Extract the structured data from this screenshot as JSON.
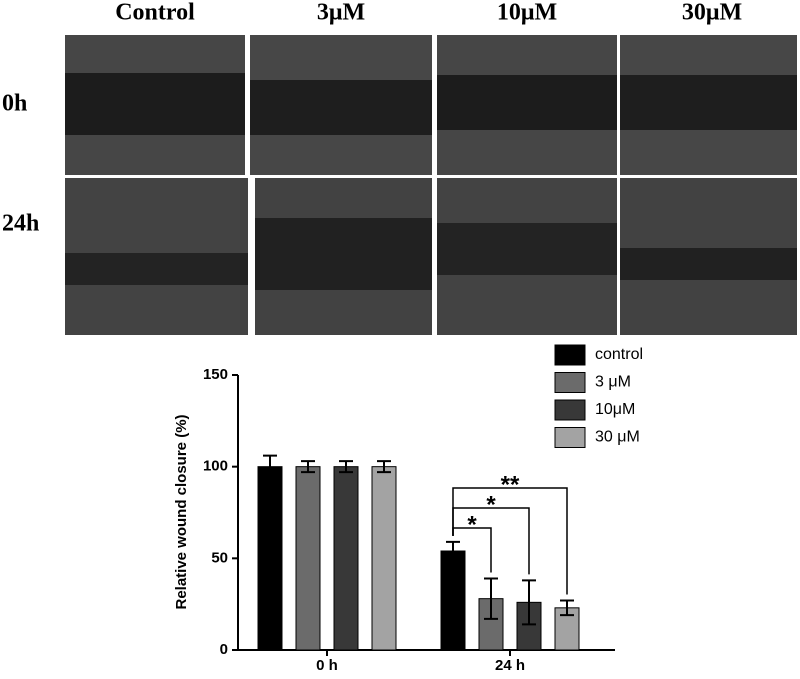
{
  "micrograph_grid": {
    "columns": [
      "Control",
      "3μM",
      "10μM",
      "30μM"
    ],
    "rows": [
      "0h",
      "24h"
    ]
  },
  "chart_data": {
    "type": "bar",
    "y_label": "Relative wound closure (%)",
    "categories": [
      "0 h",
      "24 h"
    ],
    "series": [
      {
        "name": "control",
        "color": "#000000",
        "values": [
          100,
          54
        ],
        "errors": [
          6,
          5
        ]
      },
      {
        "name": "3 μM",
        "color": "#6b6b6b",
        "values": [
          100,
          28
        ],
        "errors": [
          3,
          11
        ]
      },
      {
        "name": "10μM",
        "color": "#383838",
        "values": [
          100,
          26
        ],
        "errors": [
          3,
          12
        ]
      },
      {
        "name": "30 μM",
        "color": "#a3a3a3",
        "values": [
          100,
          23
        ],
        "errors": [
          3,
          4
        ]
      }
    ],
    "annotations": [
      "*",
      "*",
      "**"
    ],
    "ylim": [
      0,
      150
    ],
    "yticks": [
      0,
      50,
      100,
      150
    ]
  }
}
